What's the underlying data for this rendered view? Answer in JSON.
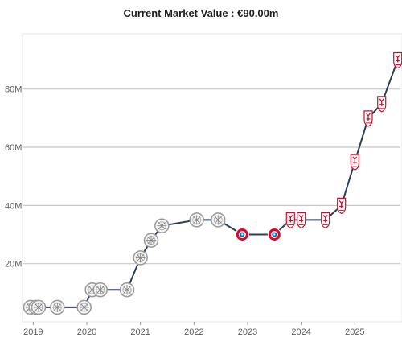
{
  "chart_data": {
    "type": "line",
    "title": "Current Market Value : €90.00m",
    "xlabel": "",
    "ylabel": "",
    "x_ticks": [
      "2019",
      "2020",
      "2021",
      "2022",
      "2023",
      "2024",
      "2025"
    ],
    "y_ticks": [
      "20M",
      "40M",
      "60M",
      "80M"
    ],
    "y_tick_values": [
      20,
      40,
      60,
      80
    ],
    "xlim": [
      2018.8,
      2025.85
    ],
    "ylim": [
      0,
      99
    ],
    "grid": true,
    "series": [
      {
        "x": [
          2018.95,
          2019.05,
          2019.1,
          2019.45,
          2019.95,
          2020.1,
          2020.25,
          2020.75,
          2021.0,
          2021.2,
          2021.4,
          2022.05,
          2022.45,
          2022.9,
          2023.5,
          2023.8,
          2024.0,
          2024.45,
          2024.75,
          2025.0,
          2025.25,
          2025.5,
          2025.8
        ],
        "values": [
          5,
          5,
          5,
          5,
          5,
          11,
          11,
          11,
          22,
          28,
          33,
          35,
          35,
          30,
          30,
          35,
          35,
          35,
          40,
          55,
          70,
          75,
          90
        ],
        "club": [
          "ajax",
          "ajax",
          "ajax",
          "ajax",
          "ajax",
          "ajax",
          "ajax",
          "ajax",
          "ajax",
          "ajax",
          "ajax",
          "ajax",
          "ajax",
          "bayern",
          "bayern",
          "liverpool",
          "liverpool",
          "liverpool",
          "liverpool",
          "liverpool",
          "liverpool",
          "liverpool",
          "liverpool"
        ]
      }
    ],
    "colors": {
      "line": "#2e3d55",
      "grid": "#c8c8c8",
      "ajax_marker": "#9a9a9a",
      "bayern_marker": "#dc052d",
      "bayern_inner": "#0066b2",
      "liverpool_marker": "#c8102e"
    }
  }
}
